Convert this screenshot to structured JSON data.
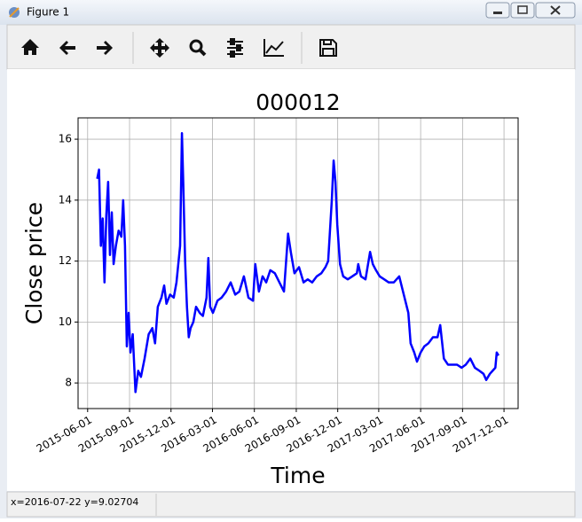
{
  "window": {
    "title": "Figure 1",
    "status": "x=2016-07-22 y=9.02704"
  },
  "chart_data": {
    "type": "line",
    "title": "000012",
    "x_label": "Time",
    "y_label": "Close price",
    "color": "#0000ff",
    "grid": true,
    "xlim": [
      "2015-05-11",
      "2018-01-01"
    ],
    "xticks": [
      "2015-06-01",
      "2015-09-01",
      "2015-12-01",
      "2016-03-01",
      "2016-06-01",
      "2016-09-01",
      "2016-12-01",
      "2017-03-01",
      "2017-06-01",
      "2017-09-01",
      "2017-12-01"
    ],
    "ylim": [
      7.16,
      16.7
    ],
    "yticks": [
      8,
      10,
      12,
      14,
      16
    ],
    "x": [
      "2015-06-22",
      "2015-06-26",
      "2015-06-30",
      "2015-07-04",
      "2015-07-08",
      "2015-07-12",
      "2015-07-16",
      "2015-07-20",
      "2015-07-24",
      "2015-07-28",
      "2015-08-02",
      "2015-08-08",
      "2015-08-14",
      "2015-08-18",
      "2015-08-22",
      "2015-08-26",
      "2015-08-30",
      "2015-09-03",
      "2015-09-08",
      "2015-09-14",
      "2015-09-20",
      "2015-09-26",
      "2015-10-04",
      "2015-10-13",
      "2015-10-21",
      "2015-10-27",
      "2015-11-02",
      "2015-11-10",
      "2015-11-16",
      "2015-11-21",
      "2015-11-29",
      "2015-12-07",
      "2015-12-13",
      "2015-12-21",
      "2015-12-25",
      "2015-12-28",
      "2016-01-01",
      "2016-01-05",
      "2016-01-09",
      "2016-01-13",
      "2016-01-19",
      "2016-01-25",
      "2016-02-02",
      "2016-02-09",
      "2016-02-17",
      "2016-02-21",
      "2016-02-25",
      "2016-03-02",
      "2016-03-12",
      "2016-03-21",
      "2016-03-31",
      "2016-04-10",
      "2016-04-20",
      "2016-04-29",
      "2016-05-09",
      "2016-05-19",
      "2016-05-29",
      "2016-06-03",
      "2016-06-11",
      "2016-06-19",
      "2016-06-27",
      "2016-07-06",
      "2016-07-16",
      "2016-07-26",
      "2016-08-05",
      "2016-08-14",
      "2016-08-20",
      "2016-08-28",
      "2016-09-07",
      "2016-09-17",
      "2016-09-26",
      "2016-10-06",
      "2016-10-16",
      "2016-10-26",
      "2016-11-04",
      "2016-11-10",
      "2016-11-18",
      "2016-11-22",
      "2016-11-26",
      "2016-11-30",
      "2016-12-06",
      "2016-12-13",
      "2016-12-23",
      "2017-01-02",
      "2017-01-12",
      "2017-01-15",
      "2017-01-21",
      "2017-01-31",
      "2017-02-10",
      "2017-02-16",
      "2017-02-23",
      "2017-03-03",
      "2017-03-13",
      "2017-03-23",
      "2017-04-03",
      "2017-04-15",
      "2017-04-25",
      "2017-05-05",
      "2017-05-10",
      "2017-05-18",
      "2017-05-24",
      "2017-06-01",
      "2017-06-09",
      "2017-06-18",
      "2017-06-28",
      "2017-07-08",
      "2017-07-14",
      "2017-07-22",
      "2017-07-31",
      "2017-08-10",
      "2017-08-20",
      "2017-08-30",
      "2017-09-08",
      "2017-09-18",
      "2017-09-28",
      "2017-10-08",
      "2017-10-17",
      "2017-10-23",
      "2017-10-31",
      "2017-11-06",
      "2017-11-12",
      "2017-11-15",
      "2017-11-19"
    ],
    "values": [
      14.7,
      15.0,
      12.5,
      13.4,
      11.3,
      13.5,
      14.6,
      12.2,
      13.6,
      11.9,
      12.5,
      13.0,
      12.8,
      14.0,
      12.5,
      9.2,
      10.3,
      9.0,
      9.6,
      7.7,
      8.4,
      8.2,
      8.8,
      9.6,
      9.8,
      9.3,
      10.5,
      10.8,
      11.2,
      10.6,
      10.9,
      10.8,
      11.3,
      12.5,
      16.2,
      14.5,
      12.0,
      10.5,
      9.5,
      9.8,
      10.0,
      10.5,
      10.3,
      10.2,
      10.8,
      12.1,
      10.5,
      10.3,
      10.7,
      10.8,
      11.0,
      11.3,
      10.9,
      11.0,
      11.5,
      10.8,
      10.7,
      11.9,
      11.0,
      11.5,
      11.3,
      11.7,
      11.6,
      11.3,
      11.0,
      12.9,
      12.3,
      11.6,
      11.8,
      11.3,
      11.4,
      11.3,
      11.5,
      11.6,
      11.8,
      12.0,
      14.0,
      15.3,
      14.6,
      13.2,
      11.9,
      11.5,
      11.4,
      11.5,
      11.6,
      11.9,
      11.5,
      11.4,
      12.3,
      11.9,
      11.7,
      11.5,
      11.4,
      11.3,
      11.3,
      11.5,
      10.9,
      10.3,
      9.3,
      9.0,
      8.7,
      9.0,
      9.2,
      9.3,
      9.5,
      9.5,
      9.9,
      8.8,
      8.6,
      8.6,
      8.6,
      8.5,
      8.6,
      8.8,
      8.5,
      8.4,
      8.3,
      8.1,
      8.3,
      8.4,
      8.5,
      9.0,
      8.9
    ]
  }
}
